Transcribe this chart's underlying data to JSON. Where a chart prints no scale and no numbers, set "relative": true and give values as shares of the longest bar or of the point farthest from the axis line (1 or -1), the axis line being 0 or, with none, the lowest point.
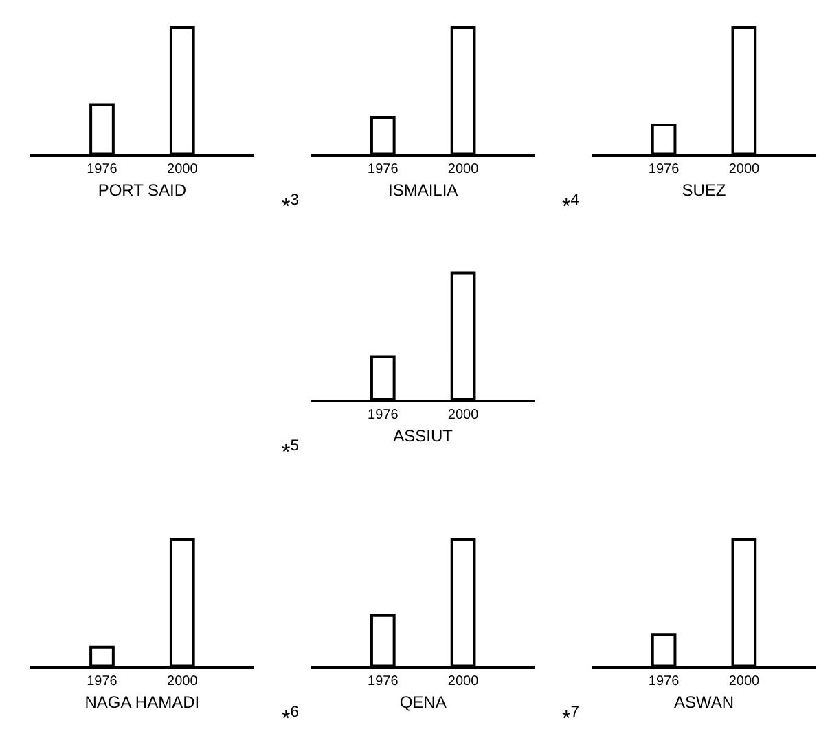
{
  "chart_data": [
    {
      "type": "bar",
      "relative": true,
      "xlabel": "PORT SAID",
      "categories": [
        "1976",
        "2000"
      ],
      "values": [
        0.39,
        1
      ],
      "color": "#ffffff"
    },
    {
      "type": "bar",
      "relative": true,
      "xlabel": "ISMAILIA",
      "categories": [
        "1976",
        "2000"
      ],
      "values": [
        0.29,
        1
      ],
      "color": "#ffffff",
      "annotations": [
        "*$^{3}$"
      ]
    },
    {
      "type": "bar",
      "relative": true,
      "xlabel": "SUEZ",
      "categories": [
        "1976",
        "2000"
      ],
      "values": [
        0.23,
        1
      ],
      "color": "#ffffff",
      "annotations": [
        "*$^{4}$"
      ]
    },
    {
      "type": "bar",
      "relative": true,
      "xlabel": "ASSIUT",
      "categories": [
        "1976",
        "2000"
      ],
      "values": [
        0.34,
        1
      ],
      "color": "#ffffff",
      "annotations": [
        "*$^{5}$"
      ]
    },
    {
      "type": "bar",
      "relative": true,
      "xlabel": "NAGA HAMADI",
      "categories": [
        "1976",
        "2000"
      ],
      "values": [
        0.15,
        1
      ],
      "color": "#ffffff"
    },
    {
      "type": "bar",
      "relative": true,
      "xlabel": "QENA",
      "categories": [
        "1976",
        "2000"
      ],
      "values": [
        0.4,
        1
      ],
      "color": "#ffffff",
      "annotations": [
        "*$^{6}$"
      ]
    },
    {
      "type": "bar",
      "relative": true,
      "xlabel": "ASWAN",
      "categories": [
        "1976",
        "2000"
      ],
      "values": [
        0.25,
        1
      ],
      "color": "#ffffff",
      "annotations": [
        "*$^{7}$"
      ]
    }
  ]
}
